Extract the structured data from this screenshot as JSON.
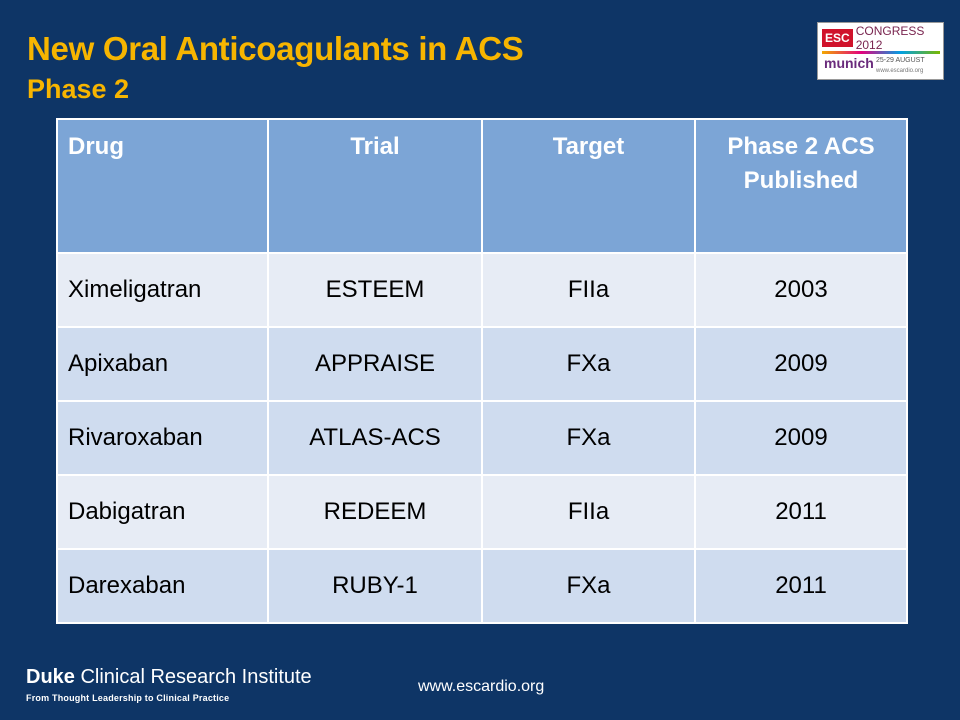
{
  "slide": {
    "title": "New Oral Anticoagulants in ACS",
    "subtitle": "Phase 2"
  },
  "logo": {
    "esc": "ESC",
    "congress": "CONGRESS 2012",
    "city": "munich",
    "dates": "25-29 AUGUST",
    "url": "www.escardio.org"
  },
  "table": {
    "headers": [
      "Drug",
      "Trial",
      "Target",
      "Phase 2 ACS Published"
    ],
    "rows": [
      [
        "Ximeligatran",
        "ESTEEM",
        "FIIa",
        "2003"
      ],
      [
        "Apixaban",
        "APPRAISE",
        "FXa",
        "2009"
      ],
      [
        "Rivaroxaban",
        "ATLAS-ACS",
        "FXa",
        "2009"
      ],
      [
        "Dabigatran",
        "REDEEM",
        "FIIa",
        "2011"
      ],
      [
        "Darexaban",
        "RUBY-1",
        "FXa",
        "2011"
      ]
    ]
  },
  "footer": {
    "institute_bold": "Duke",
    "institute_rest": " Clinical Research Institute",
    "tagline": "From Thought Leadership to Clinical Practice",
    "url": "www.escardio.org"
  },
  "colors": {
    "background": "#0e3566",
    "title": "#f7b500",
    "header_cell": "#7ca5d6",
    "row_light": "#e7ecf5",
    "row_dark": "#cfdcef"
  }
}
